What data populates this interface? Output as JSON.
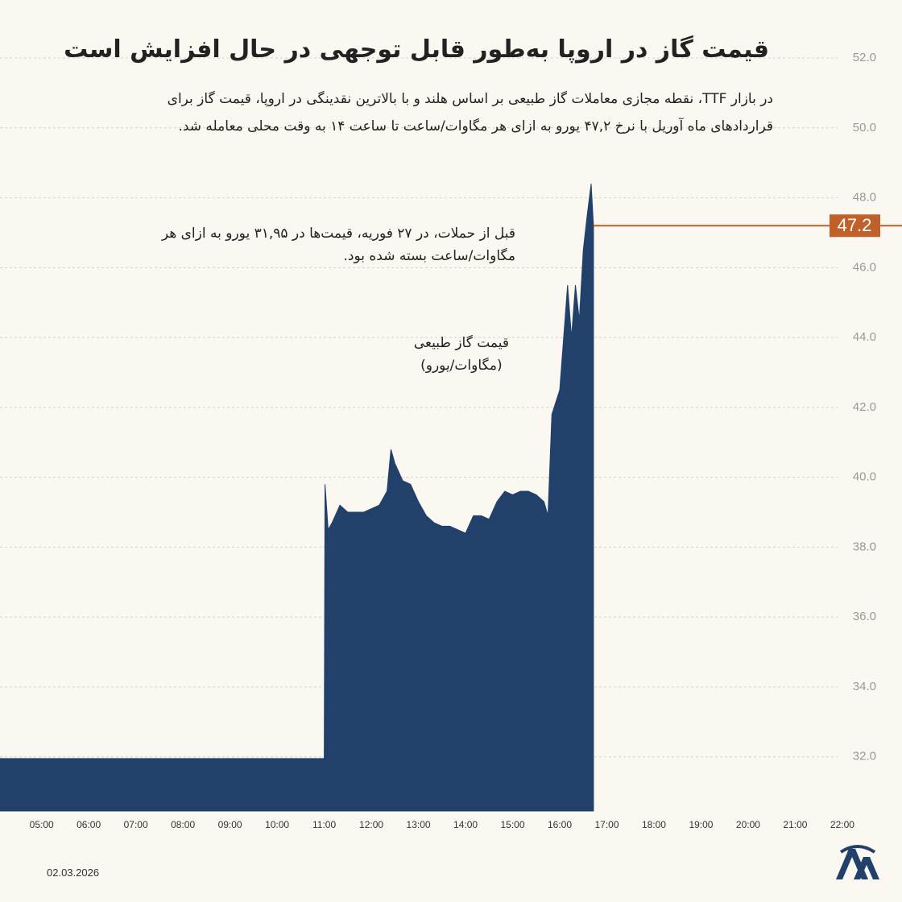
{
  "chart_data": {
    "type": "area",
    "title": "قیمت گاز در اروپا به‌طور قابل توجهی در حال افزایش است",
    "subtitle": [
      "در بازار TTF، نقطه مجازی معاملات گاز طبیعی بر اساس هلند و با بالاترین نقدینگی در اروپا، قیمت گاز برای",
      "قراردادهای ماه آوریل با نرخ ۴۷,۲ یورو به ازای هر مگاوات/ساعت تا ساعت ۱۴ به وقت محلی معامله شد."
    ],
    "annotations": [
      [
        "قبل از حملات، در ۲۷ فوریه، قیمت‌ها در ۳۱,۹۵ یورو به ازای هر",
        "مگاوات/ساعت بسته شده بود."
      ],
      [
        "قیمت گاز طبیعی",
        "(مگاوات/یورو)"
      ]
    ],
    "date": "02.03.2026",
    "x": [
      "04:07",
      "11:00",
      "11:01",
      "11:05",
      "11:10",
      "11:20",
      "11:30",
      "11:40",
      "11:50",
      "12:00",
      "12:10",
      "12:20",
      "12:25",
      "12:30",
      "12:40",
      "12:50",
      "13:00",
      "13:10",
      "13:20",
      "13:30",
      "13:40",
      "13:50",
      "14:00",
      "14:10",
      "14:20",
      "14:30",
      "14:40",
      "14:50",
      "15:00",
      "15:10",
      "15:20",
      "15:30",
      "15:40",
      "15:45",
      "15:50",
      "16:00",
      "16:05",
      "16:10",
      "16:15",
      "16:20",
      "16:25",
      "16:30",
      "16:35",
      "16:40",
      "16:43"
    ],
    "series": [
      {
        "name": "TTF",
        "color": "#22416a",
        "values": [
          31.95,
          31.95,
          39.8,
          38.5,
          38.7,
          39.2,
          39.0,
          39.0,
          39.0,
          39.1,
          39.2,
          39.6,
          40.8,
          40.4,
          39.9,
          39.8,
          39.3,
          38.9,
          38.7,
          38.6,
          38.6,
          38.5,
          38.4,
          38.9,
          38.9,
          38.8,
          39.3,
          39.6,
          39.5,
          39.6,
          39.6,
          39.5,
          39.3,
          38.9,
          41.8,
          42.5,
          44.0,
          45.5,
          44.0,
          45.5,
          44.5,
          46.5,
          47.5,
          48.4,
          47.2
        ]
      }
    ],
    "last_color": "#c0602a",
    "xlim": [
      "04:07",
      "23:16"
    ],
    "xticks": [
      "05:00",
      "06:00",
      "07:00",
      "08:00",
      "09:00",
      "10:00",
      "11:00",
      "12:00",
      "13:00",
      "14:00",
      "15:00",
      "16:00",
      "17:00",
      "18:00",
      "19:00",
      "20:00",
      "21:00",
      "22:00"
    ],
    "ylim": [
      30.45,
      53.66
    ],
    "yticks": [
      {
        "value": 32,
        "label": "32.0"
      },
      {
        "value": 34,
        "label": "34.0"
      },
      {
        "value": 36,
        "label": "36.0"
      },
      {
        "value": 38,
        "label": "38.0"
      },
      {
        "value": 40,
        "label": "40.0"
      },
      {
        "value": 42,
        "label": "42.0"
      },
      {
        "value": 44,
        "label": "44.0"
      },
      {
        "value": 46,
        "label": "46.0"
      },
      {
        "value": 48,
        "label": "48.0"
      },
      {
        "value": 50,
        "label": "50.0"
      },
      {
        "value": 52,
        "label": "52.0"
      }
    ],
    "grid": true
  }
}
